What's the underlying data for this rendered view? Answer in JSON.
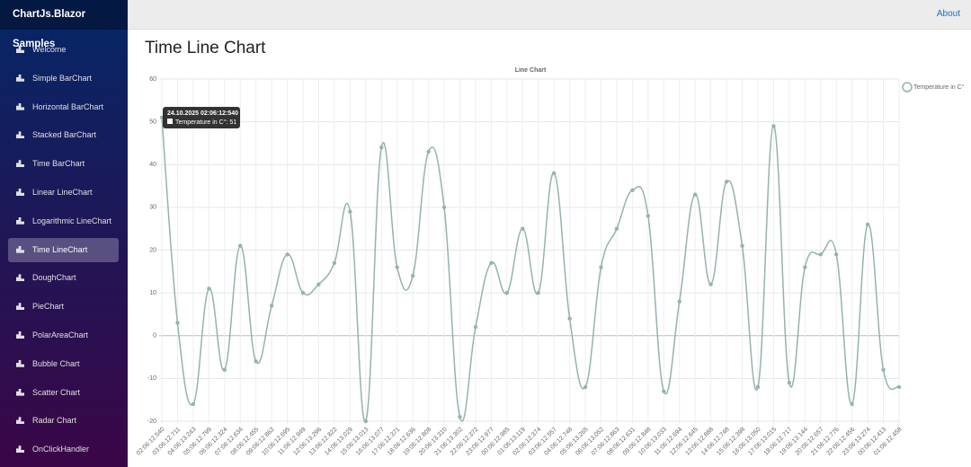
{
  "app": {
    "brand": "ChartJs.Blazor Samples",
    "top_link": "About",
    "heading": "Time Line Chart",
    "nav": [
      "Welcome",
      "Simple BarChart",
      "Horizontal BarChart",
      "Stacked BarChart",
      "Time BarChart",
      "Linear LineChart",
      "Logarithmic LineChart",
      "Time LineChart",
      "DoughChart",
      "PieChart",
      "PolarAreaChart",
      "Bubble Chart",
      "Scatter Chart",
      "Radar Chart",
      "OnClickHandler"
    ],
    "active_nav": 7
  },
  "chart_data": {
    "type": "line",
    "title": "Line Chart",
    "categories": [
      "02:06:12.540",
      "03:06:12.711",
      "04:06:13.243",
      "05:06:12.799",
      "06:06:12.324",
      "07:06:12.634",
      "08:06:12.455",
      "09:06:12.862",
      "10:06:12.695",
      "11:06:12.949",
      "12:06:13.296",
      "13:06:12.822",
      "14:06:13.029",
      "15:06:13.013",
      "16:06:13.077",
      "17:06:12.371",
      "18:06:12.636",
      "19:06:12.808",
      "20:06:13.310",
      "21:06:13.302",
      "22:06:12.372",
      "23:06:12.977",
      "00:06:12.985",
      "01:06:13.119",
      "02:06:12.374",
      "03:06:12.557",
      "04:06:12.748",
      "05:06:13.265",
      "06:06:13.052",
      "07:06:12.863",
      "08:06:12.631",
      "09:06:12.848",
      "10:06:13.033",
      "11:06:12.694",
      "12:06:12.645",
      "13:06:12.888",
      "14:06:12.748",
      "15:06:12.398",
      "16:06:13.050",
      "17:06:13.015",
      "18:06:12.717",
      "19:06:13.144",
      "20:06:12.657",
      "21:06:12.776",
      "22:06:12.456",
      "23:06:13.274",
      "00:06:12.413",
      "01:06:12.458"
    ],
    "series": [
      {
        "name": "Temperature in C°",
        "color": "#93b5a6",
        "values": [
          51,
          3,
          -16,
          11,
          -8,
          21,
          -6,
          7,
          19,
          10,
          12,
          17,
          29,
          -20,
          44,
          16,
          14,
          43,
          30,
          -19,
          2,
          17,
          10,
          25,
          10,
          38,
          4,
          -12,
          16,
          25,
          34,
          28,
          -13,
          8,
          33,
          12,
          36,
          21,
          -12,
          49,
          -11,
          16,
          19,
          19,
          -16,
          26,
          -8,
          -12
        ]
      }
    ],
    "ylim": [
      -20,
      60
    ],
    "yticks": [
      -20,
      -10,
      0,
      10,
      20,
      30,
      40,
      50,
      60
    ],
    "grid": true,
    "legend": "right",
    "tooltip": {
      "title": "24.10.2025 02:06:12:540",
      "body": "Temperature in C°: 51"
    }
  }
}
